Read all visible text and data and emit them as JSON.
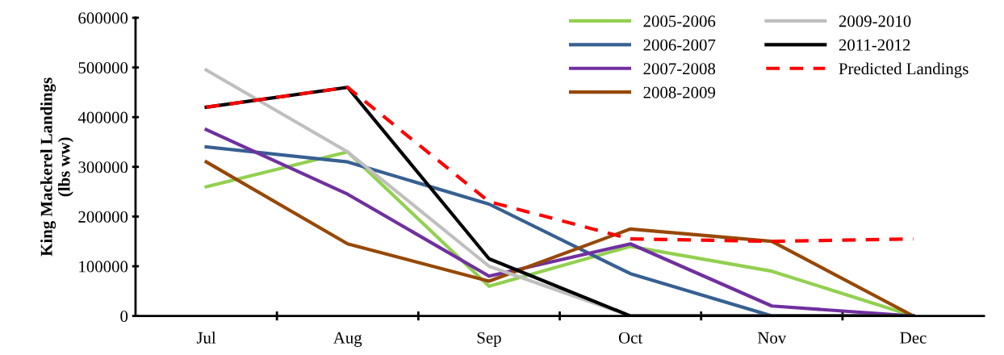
{
  "chart_data": {
    "type": "line",
    "ylabel": "King Mackerel Landings\n(lbs ww)",
    "categories": [
      "Jul",
      "Aug",
      "Sep",
      "Oct",
      "Nov",
      "Dec"
    ],
    "series": [
      {
        "name": "2005-2006",
        "color": "#92d050",
        "values": [
          260000,
          330000,
          60000,
          140000,
          90000,
          0
        ]
      },
      {
        "name": "2006-2007",
        "color": "#376092",
        "values": [
          340000,
          310000,
          225000,
          85000,
          0,
          0
        ]
      },
      {
        "name": "2007-2008",
        "color": "#7030a0",
        "values": [
          375000,
          245000,
          80000,
          145000,
          20000,
          0
        ]
      },
      {
        "name": "2008-2009",
        "color": "#974806",
        "values": [
          310000,
          145000,
          70000,
          175000,
          150000,
          0
        ]
      },
      {
        "name": "2009-2010",
        "color": "#bfbfbf",
        "values": [
          495000,
          330000,
          100000,
          0,
          0,
          0
        ]
      },
      {
        "name": "2011-2012",
        "color": "#000000",
        "values": [
          420000,
          460000,
          115000,
          0,
          0,
          0
        ]
      },
      {
        "name": "Predicted Landings",
        "color": "#ff0000",
        "line_style": "dashed",
        "values": [
          420000,
          460000,
          230000,
          155000,
          150000,
          155000
        ]
      }
    ],
    "ylim": [
      0,
      600000
    ],
    "yticks": [
      0,
      100000,
      200000,
      300000,
      400000,
      500000,
      600000
    ],
    "grid": false,
    "legend": "top right",
    "marker": "none",
    "line_style": "solid"
  }
}
